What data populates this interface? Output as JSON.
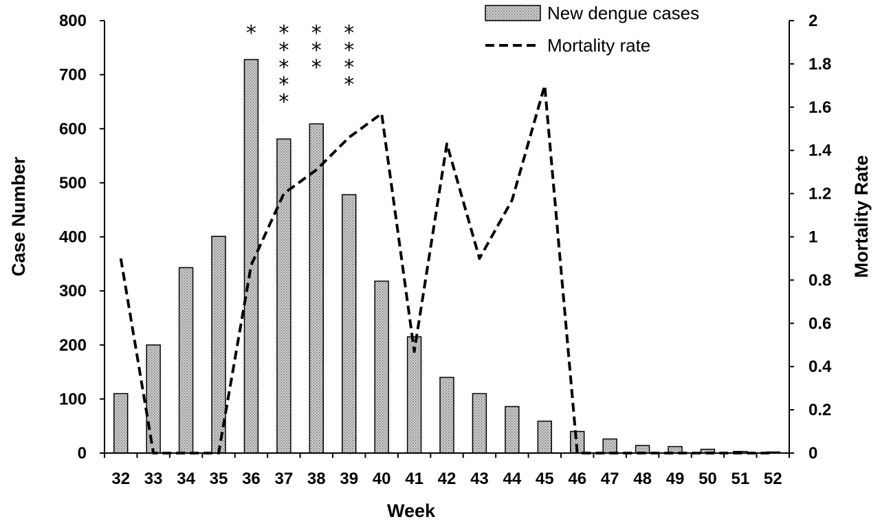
{
  "chart_data": {
    "type": "bar",
    "categories": [
      "32",
      "33",
      "34",
      "35",
      "36",
      "37",
      "38",
      "39",
      "40",
      "41",
      "42",
      "43",
      "44",
      "45",
      "46",
      "47",
      "48",
      "49",
      "50",
      "51",
      "52"
    ],
    "series": [
      {
        "name": "New dengue cases",
        "type": "bar",
        "axis": "left",
        "values": [
          110,
          200,
          343,
          401,
          728,
          581,
          609,
          478,
          318,
          215,
          140,
          110,
          86,
          59,
          40,
          26,
          14,
          12,
          7,
          3,
          2
        ]
      },
      {
        "name": "Mortality rate",
        "type": "line",
        "style": "dashed",
        "axis": "right",
        "values": [
          0.9,
          0,
          0,
          0,
          0.87,
          1.2,
          1.31,
          1.46,
          1.57,
          0.47,
          1.43,
          0.9,
          1.17,
          1.7,
          0,
          0,
          0,
          0,
          0,
          0,
          0
        ]
      }
    ],
    "xlabel": "Week",
    "ylabel": "Case Number",
    "y2label": "Mortality Rate",
    "ylim": [
      0,
      800
    ],
    "y2lim": [
      0,
      2
    ],
    "yticks": [
      "0",
      "100",
      "200",
      "300",
      "400",
      "500",
      "600",
      "700",
      "800"
    ],
    "y2ticks": [
      "0",
      "0.2",
      "0.4",
      "0.6",
      "0.8",
      "1",
      "1.2",
      "1.4",
      "1.6",
      "1.8",
      "2"
    ],
    "grid": false,
    "legend": "top-right",
    "annotations": [
      {
        "category": "36",
        "text": "*",
        "count": 1
      },
      {
        "category": "37",
        "text": "*",
        "count": 5
      },
      {
        "category": "38",
        "text": "*",
        "count": 3
      },
      {
        "category": "39",
        "text": "*",
        "count": 4
      }
    ],
    "colors": {
      "bar_fill": "#c8c8c8",
      "bar_stroke": "#000000",
      "line": "#000000"
    }
  }
}
